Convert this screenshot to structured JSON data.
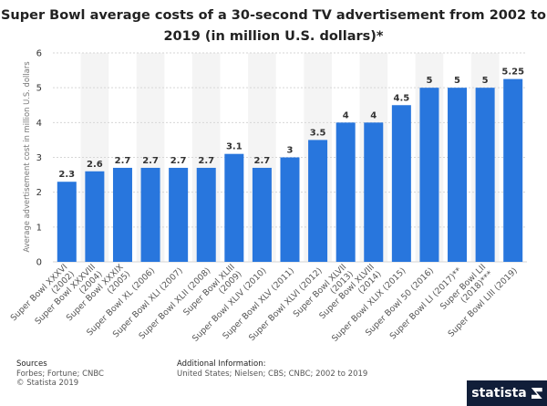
{
  "chart_data": {
    "type": "bar",
    "title": "Super Bowl average costs of a 30-second TV advertisement from 2002 to 2019 (in million U.S. dollars)*",
    "xlabel": "",
    "ylabel": "Average advertisement cost in million U.S. dollars",
    "ylim": [
      0,
      6
    ],
    "yticks": [
      0,
      1,
      2,
      3,
      4,
      5,
      6
    ],
    "categories": [
      "Super Bowl XXXVI (2002)",
      "Super Bowl XXXVIII (2004)",
      "Super Bowl XXXIX (2005)",
      "Super Bowl XL (2006)",
      "Super Bowl XLI (2007)",
      "Super Bowl XLII (2008)",
      "Super Bowl XLIII (2009)",
      "Super Bowl XLIV (2010)",
      "Super Bowl XLV (2011)",
      "Super Bowl XLVI (2012)",
      "Super Bowl XLVII (2013)",
      "Super Bowl XLVIII (2014)",
      "Super Bowl XLIX (2015)",
      "Super Bowl 50 (2016)",
      "Super Bowl LI (2017)**",
      "Super Bowl LII (2018)***",
      "Super Bowl LIII (2019)"
    ],
    "values": [
      2.3,
      2.6,
      2.7,
      2.7,
      2.7,
      2.7,
      3.1,
      2.7,
      3,
      3.5,
      4,
      4,
      4.5,
      5,
      5,
      5,
      5.25
    ],
    "value_labels": [
      "2.3",
      "2.6",
      "2.7",
      "2.7",
      "2.7",
      "2.7",
      "3.1",
      "2.7",
      "3",
      "3.5",
      "4",
      "4",
      "4.5",
      "5",
      "5",
      "5",
      "5.25"
    ],
    "grid": true,
    "bar_color": "#2876dd",
    "band_color": "#f4f4f4"
  },
  "footer": {
    "sources_heading": "Sources",
    "sources_text": "Forbes; Fortune; CNBC",
    "copyright": "© Statista 2019",
    "additional_heading": "Additional Information:",
    "additional_text": "United States; Nielsen; CBS; CNBC; 2002 to 2019"
  },
  "brand": {
    "name": "statista",
    "icon": "statista-logo-icon"
  }
}
